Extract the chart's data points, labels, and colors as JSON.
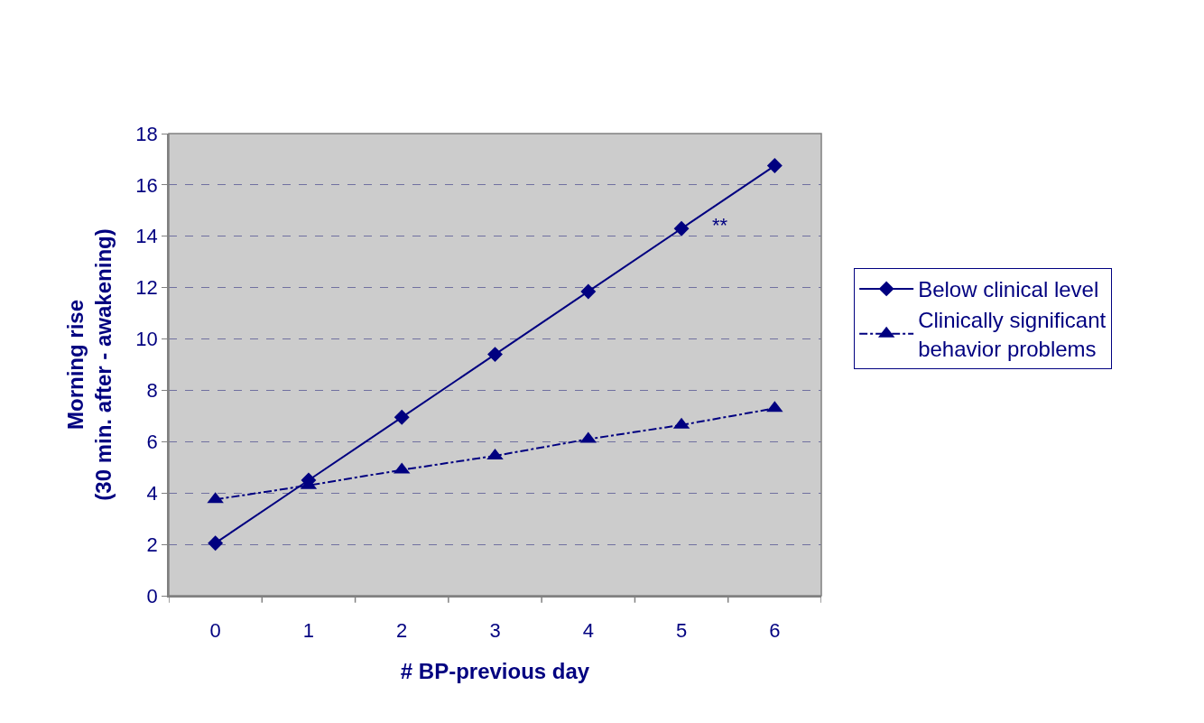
{
  "chart_data": {
    "type": "line",
    "xlabel": "# BP-previous day",
    "ylabel": "Morning rise\n(30 min. after - awakening)",
    "categories": [
      "0",
      "1",
      "2",
      "3",
      "4",
      "5",
      "6"
    ],
    "series": [
      {
        "name": "Below clinical level",
        "color": "#000080",
        "values": [
          2.05,
          4.5,
          6.95,
          9.4,
          11.85,
          14.3,
          16.75
        ],
        "marker": "diamond",
        "line_style": "solid"
      },
      {
        "name": "Clinically significant\nbehavior problems",
        "color": "#000080",
        "values": [
          3.75,
          4.3,
          4.9,
          5.45,
          6.1,
          6.65,
          7.3
        ],
        "marker": "triangle",
        "line_style": "dashed"
      }
    ],
    "ylim": [
      0,
      18
    ],
    "yticks": [
      0,
      2,
      4,
      6,
      8,
      10,
      12,
      14,
      16,
      18
    ],
    "grid": "y",
    "legend": "right",
    "annotations": [
      "**"
    ]
  }
}
